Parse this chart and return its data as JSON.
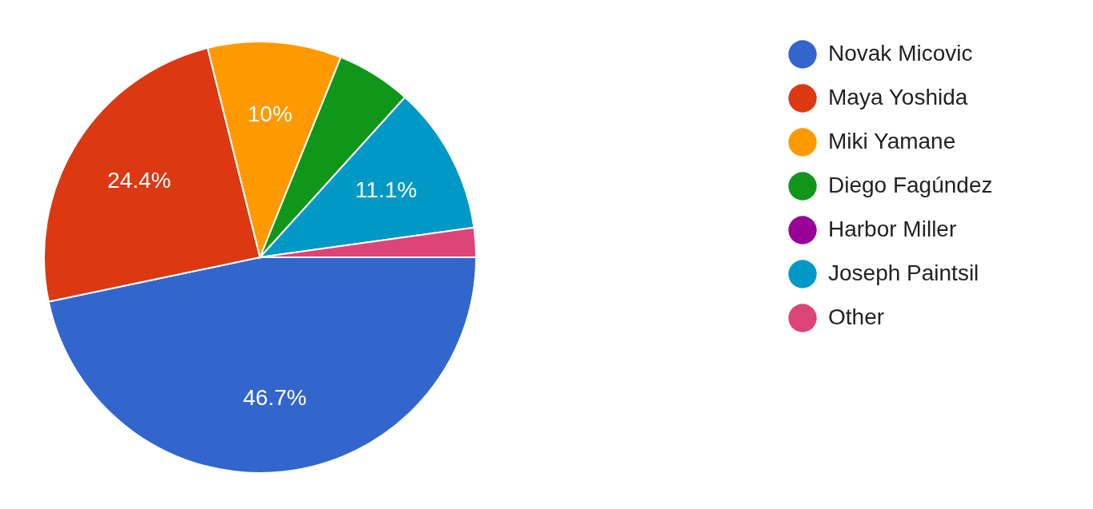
{
  "chart_data": {
    "type": "pie",
    "categories": [
      "Novak Micovic",
      "Maya Yoshida",
      "Miki Yamane",
      "Diego Fagúndez",
      "Harbor Miller",
      "Joseph Paintsil",
      "Other"
    ],
    "values": [
      46.7,
      24.4,
      10,
      5.6,
      0,
      11.1,
      2.2
    ],
    "value_labels": [
      "46.7%",
      "24.4%",
      "10%",
      null,
      null,
      "11.1%",
      null
    ],
    "colors": [
      "#3366cc",
      "#dc3912",
      "#ff9900",
      "#109618",
      "#990099",
      "#0099c6",
      "#dd4477"
    ],
    "legend": "right"
  }
}
